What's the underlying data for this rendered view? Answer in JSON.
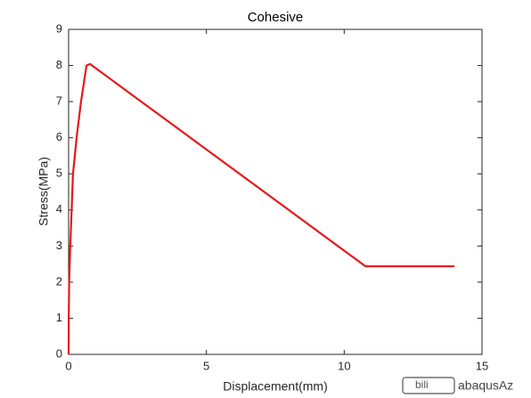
{
  "chart_data": {
    "type": "line",
    "title": "Cohesive",
    "x_label": "Displacement(mm)",
    "y_label": "Stress(MPa)",
    "x": [
      0,
      0.005,
      0.02,
      0.06,
      0.16,
      0.29,
      0.45,
      0.65,
      0.78,
      10.77,
      14
    ],
    "series": [
      {
        "name": "Cohesive",
        "color": "#e41a1c",
        "values": [
          0,
          1,
          2,
          3,
          5,
          6,
          7,
          8,
          8.04,
          2.44,
          2.44
        ]
      }
    ],
    "xlim": [
      0,
      15
    ],
    "xticks": [
      0,
      5,
      10,
      15
    ],
    "ylim": [
      0,
      9
    ],
    "yticks": [
      0,
      1,
      2,
      3,
      4,
      5,
      6,
      7,
      8,
      9
    ],
    "grid": false,
    "watermark": "abaqusAz"
  }
}
